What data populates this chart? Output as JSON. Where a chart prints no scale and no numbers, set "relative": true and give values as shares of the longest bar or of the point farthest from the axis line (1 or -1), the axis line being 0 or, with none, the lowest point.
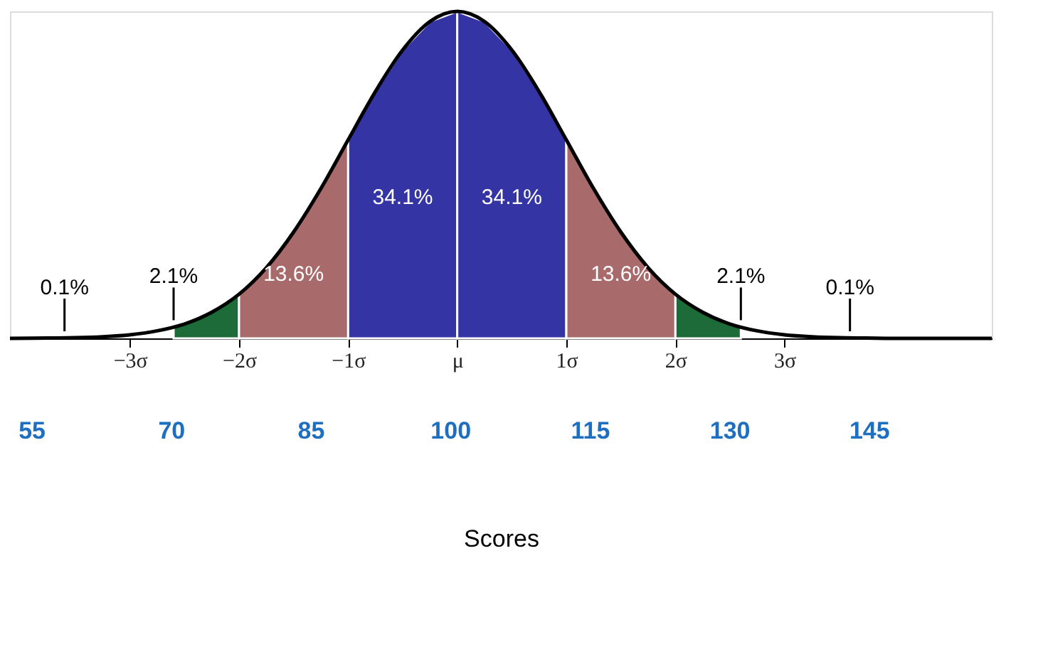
{
  "chart_data": {
    "type": "area",
    "relative": true,
    "legend": false,
    "grid": false,
    "xlim": [
      -4.1,
      4.9
    ],
    "xticks": [
      {
        "value": -3,
        "label": "−3σ"
      },
      {
        "value": -2,
        "label": "−2σ"
      },
      {
        "value": -1,
        "label": "−1σ"
      },
      {
        "value": 0,
        "label": "μ"
      },
      {
        "value": 1,
        "label": "1σ"
      },
      {
        "value": 2,
        "label": "2σ"
      },
      {
        "value": 3,
        "label": "3σ"
      }
    ],
    "x2lim": [
      52.7,
      158.2
    ],
    "x2ticks": [
      55,
      70,
      85,
      100,
      115,
      130,
      145
    ],
    "x2label": "Scores",
    "series": [
      {
        "color": "#1e6b3a",
        "x": [
          -2.6,
          -2.4,
          -2.2,
          -2.0
        ],
        "values": [
          0.034,
          0.056,
          0.089,
          0.135
        ]
      },
      {
        "color": "#a86a6a",
        "x": [
          -2.0,
          -1.75,
          -1.5,
          -1.25,
          -1.0
        ],
        "values": [
          0.135,
          0.216,
          0.325,
          0.458,
          0.607
        ]
      },
      {
        "color": "#3434a4",
        "x": [
          -1.0,
          -0.75,
          -0.5,
          -0.25,
          0.0
        ],
        "values": [
          0.607,
          0.755,
          0.882,
          0.969,
          1.0
        ]
      },
      {
        "color": "#3434a4",
        "x": [
          0.0,
          0.25,
          0.5,
          0.75,
          1.0
        ],
        "values": [
          1.0,
          0.969,
          0.882,
          0.755,
          0.607
        ]
      },
      {
        "color": "#a86a6a",
        "x": [
          1.0,
          1.25,
          1.5,
          1.75,
          2.0
        ],
        "values": [
          0.607,
          0.458,
          0.325,
          0.216,
          0.135
        ]
      },
      {
        "color": "#1e6b3a",
        "x": [
          2.0,
          2.2,
          2.4,
          2.6
        ],
        "values": [
          0.135,
          0.089,
          0.056,
          0.034
        ]
      },
      {
        "type": "line",
        "color": "#000000",
        "x": [
          -4.1,
          -3.75,
          -3.5,
          -3.25,
          -3.0,
          -2.75,
          -2.5,
          -2.25,
          -2.0,
          -1.75,
          -1.5,
          -1.25,
          -1.0,
          -0.75,
          -0.5,
          -0.25,
          0.0,
          0.25,
          0.5,
          0.75,
          1.0,
          1.25,
          1.5,
          1.75,
          2.0,
          2.25,
          2.5,
          2.75,
          3.0,
          3.25,
          3.5,
          3.75,
          4.0,
          4.5,
          4.9
        ],
        "values": [
          0.0,
          0.001,
          0.002,
          0.005,
          0.011,
          0.023,
          0.044,
          0.08,
          0.135,
          0.216,
          0.325,
          0.458,
          0.607,
          0.755,
          0.882,
          0.969,
          1.0,
          0.969,
          0.882,
          0.755,
          0.607,
          0.458,
          0.325,
          0.216,
          0.135,
          0.08,
          0.044,
          0.023,
          0.011,
          0.005,
          0.002,
          0.001,
          0.0,
          0.0,
          0.0
        ]
      }
    ],
    "annotations": [
      "0.1%",
      "2.1%",
      "13.6%",
      "34.1%",
      "34.1%",
      "13.6%",
      "2.1%",
      "0.1%"
    ]
  }
}
